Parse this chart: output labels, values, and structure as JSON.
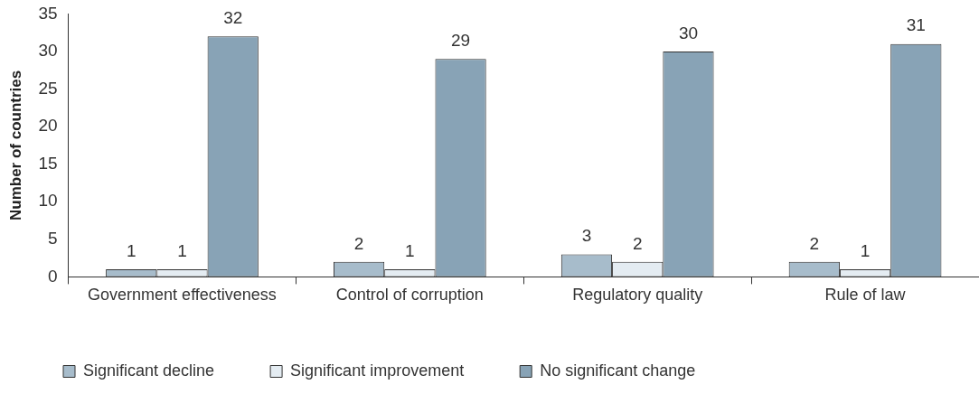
{
  "chart_data": {
    "type": "bar",
    "ylabel": "Number of countries",
    "categories": [
      "Government effectiveness",
      "Control of corruption",
      "Regulatory quality",
      "Rule of law"
    ],
    "series": [
      {
        "name": "Significant decline",
        "color": "#a7bccb",
        "values": [
          1,
          2,
          3,
          2
        ]
      },
      {
        "name": "Significant improvement",
        "color": "#e4ecf2",
        "values": [
          1,
          1,
          2,
          1
        ]
      },
      {
        "name": "No significant change",
        "color": "#88a3b6",
        "values": [
          32,
          29,
          30,
          31
        ]
      }
    ],
    "ylim": [
      0,
      35
    ],
    "yticks": [
      0,
      5,
      10,
      15,
      20,
      25,
      30,
      35
    ],
    "data_labels": true,
    "legend": "bottom"
  }
}
